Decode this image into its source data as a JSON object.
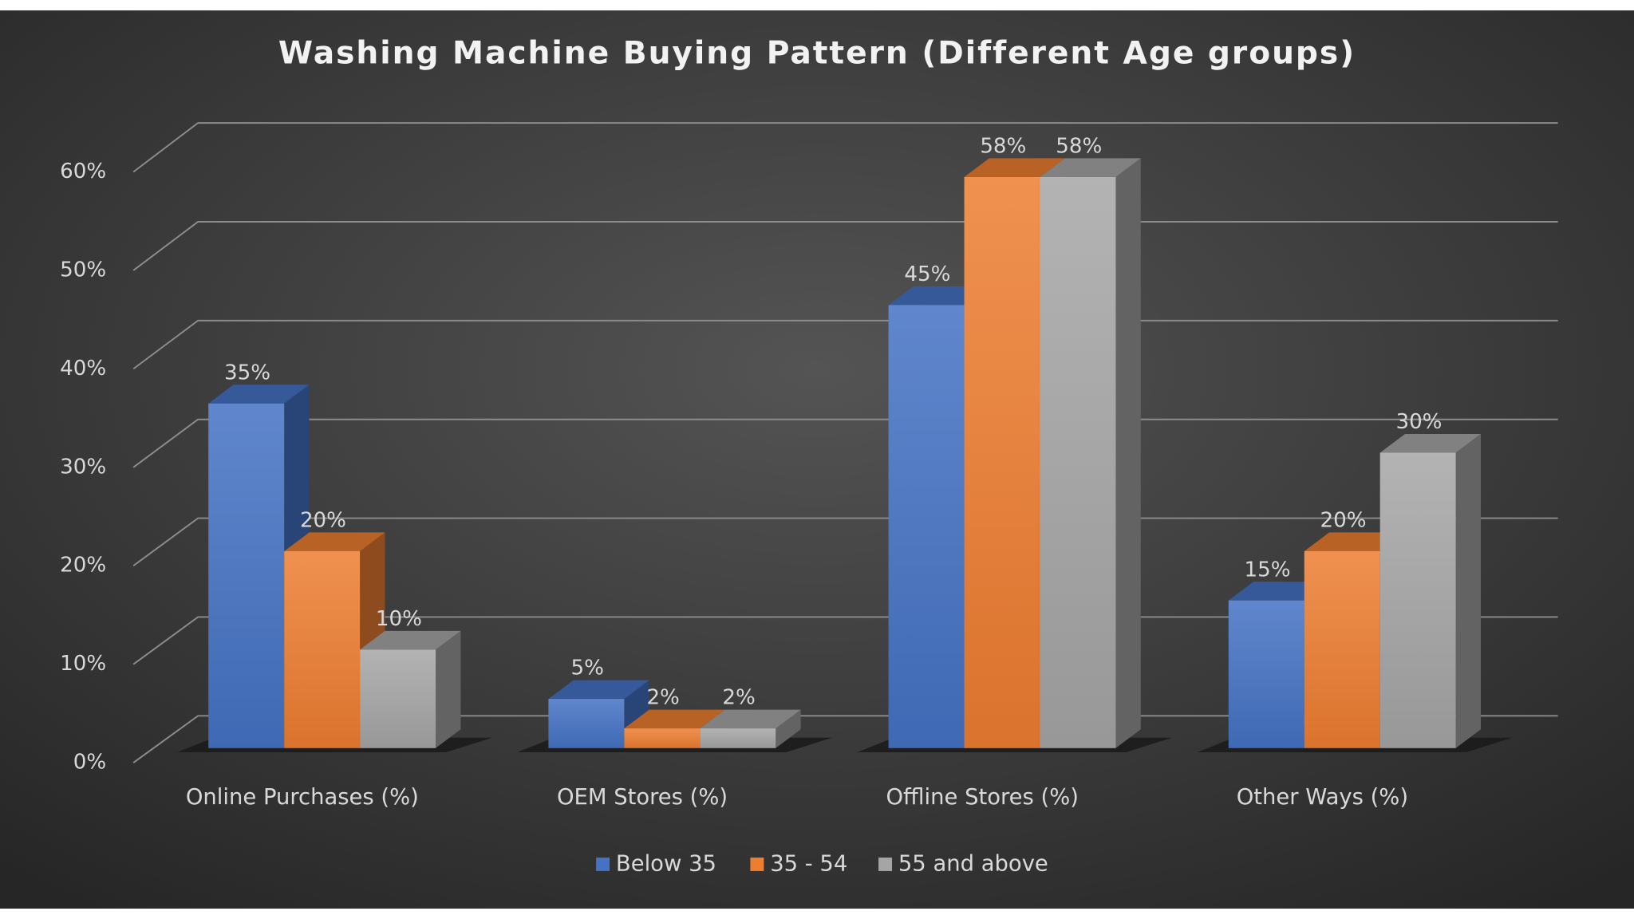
{
  "chart_data": {
    "type": "bar3d",
    "title": "Washing Machine Buying Pattern (Different Age groups)",
    "categories": [
      "Online Purchases (%)",
      "OEM Stores (%)",
      "Offline Stores (%)",
      "Other Ways (%)"
    ],
    "series": [
      {
        "name": "Below 35",
        "color": "#4472c4",
        "values": [
          35,
          5,
          45,
          15
        ],
        "value_labels": [
          "35%",
          "5%",
          "45%",
          "15%"
        ]
      },
      {
        "name": "35 - 54",
        "color": "#ed7d31",
        "values": [
          20,
          2,
          58,
          20
        ],
        "value_labels": [
          "20%",
          "2%",
          "58%",
          "20%"
        ]
      },
      {
        "name": "55 and above",
        "color": "#a5a5a5",
        "values": [
          10,
          2,
          58,
          30
        ],
        "value_labels": [
          "10%",
          "2%",
          "58%",
          "30%"
        ]
      }
    ],
    "ylim": [
      0,
      60
    ],
    "yticks": [
      {
        "value": 0,
        "label": "0%"
      },
      {
        "value": 10,
        "label": "10%"
      },
      {
        "value": 20,
        "label": "20%"
      },
      {
        "value": 30,
        "label": "30%"
      },
      {
        "value": 40,
        "label": "40%"
      },
      {
        "value": 50,
        "label": "50%"
      },
      {
        "value": 60,
        "label": "60%"
      }
    ],
    "grid": true
  }
}
